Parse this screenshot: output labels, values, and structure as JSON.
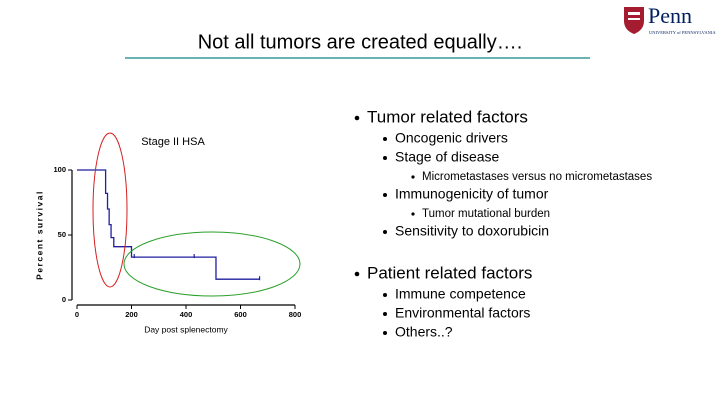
{
  "slide": {
    "title": "Not all tumors are created equally….",
    "logo": {
      "name": "Penn",
      "subtitle": "UNIVERSITY of PENNSYLVANIA"
    },
    "bullets": [
      {
        "text": "Tumor related factors",
        "items": [
          {
            "text": "Oncogenic drivers",
            "items": []
          },
          {
            "text": "Stage of disease",
            "items": [
              {
                "text": "Micrometastases versus no micrometastases"
              }
            ]
          },
          {
            "text": "Immunogenicity of tumor",
            "items": [
              {
                "text": "Tumor mutational burden"
              }
            ]
          },
          {
            "text": "Sensitivity to doxorubicin",
            "items": []
          }
        ]
      },
      {
        "text": "Patient related factors",
        "items": [
          {
            "text": "Immune competence",
            "items": []
          },
          {
            "text": "Environmental factors",
            "items": []
          },
          {
            "text": "Others..?",
            "items": []
          }
        ]
      }
    ]
  },
  "chart_data": {
    "type": "step",
    "title": "Stage II HSA",
    "x_label": "Day post splenectomy",
    "y_label": "Percent survival",
    "x": [
      0,
      105,
      105,
      112,
      112,
      118,
      118,
      125,
      125,
      135,
      135,
      200,
      200,
      510,
      510,
      670
    ],
    "values": [
      100,
      100,
      82,
      82,
      70,
      70,
      58,
      58,
      48,
      48,
      41,
      41,
      33,
      33,
      16,
      16
    ],
    "color": "#1f1fa0",
    "censored": {
      "x": [
        210,
        430,
        670
      ],
      "values": [
        33,
        33,
        16
      ]
    },
    "xlim": [
      0,
      800
    ],
    "xticks": [
      0,
      200,
      400,
      600,
      800
    ],
    "ylim": [
      0,
      100
    ],
    "yticks": [
      0,
      50,
      100
    ]
  }
}
